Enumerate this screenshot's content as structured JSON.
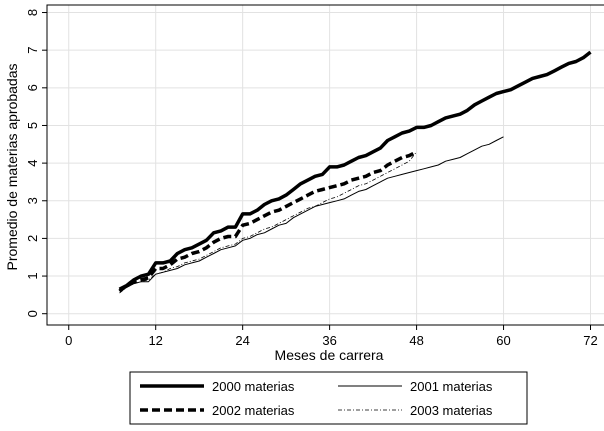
{
  "chart_data": {
    "type": "line",
    "title": "",
    "xlabel": "Meses de carrera",
    "ylabel": "Promedio de materias aprobadas",
    "xlim": [
      0,
      72
    ],
    "ylim": [
      0,
      8
    ],
    "x_ticks": [
      0,
      12,
      24,
      36,
      48,
      60,
      72
    ],
    "y_ticks": [
      0,
      1,
      2,
      3,
      4,
      5,
      6,
      7,
      8
    ],
    "grid": true,
    "legend_position": "bottom",
    "series": [
      {
        "name": "2000 materias",
        "style": "thick-solid",
        "x": [
          7,
          8,
          9,
          10,
          11,
          12,
          13,
          14,
          15,
          16,
          17,
          18,
          19,
          20,
          21,
          22,
          23,
          24,
          25,
          26,
          27,
          28,
          29,
          30,
          31,
          32,
          33,
          34,
          35,
          36,
          37,
          38,
          39,
          40,
          41,
          42,
          43,
          44,
          45,
          46,
          47,
          48,
          49,
          50,
          51,
          52,
          53,
          54,
          55,
          56,
          57,
          58,
          59,
          60,
          61,
          62,
          63,
          64,
          65,
          66,
          67,
          68,
          69,
          70,
          71,
          72
        ],
        "values": [
          0.65,
          0.75,
          0.9,
          1.0,
          1.05,
          1.35,
          1.35,
          1.4,
          1.6,
          1.7,
          1.75,
          1.85,
          1.95,
          2.15,
          2.2,
          2.3,
          2.3,
          2.65,
          2.65,
          2.75,
          2.9,
          3.0,
          3.05,
          3.15,
          3.3,
          3.45,
          3.55,
          3.65,
          3.7,
          3.9,
          3.9,
          3.95,
          4.05,
          4.15,
          4.2,
          4.3,
          4.4,
          4.6,
          4.7,
          4.8,
          4.85,
          4.95,
          4.95,
          5.0,
          5.1,
          5.2,
          5.25,
          5.3,
          5.4,
          5.55,
          5.65,
          5.75,
          5.85,
          5.9,
          5.95,
          6.05,
          6.15,
          6.25,
          6.3,
          6.35,
          6.45,
          6.55,
          6.65,
          6.7,
          6.8,
          6.95
        ]
      },
      {
        "name": "2001 materias",
        "style": "thin-solid",
        "x": [
          7,
          8,
          9,
          10,
          11,
          12,
          13,
          14,
          15,
          16,
          17,
          18,
          19,
          20,
          21,
          22,
          23,
          24,
          25,
          26,
          27,
          28,
          29,
          30,
          31,
          32,
          33,
          34,
          35,
          36,
          37,
          38,
          39,
          40,
          41,
          42,
          43,
          44,
          45,
          46,
          47,
          48,
          49,
          50,
          51,
          52,
          53,
          54,
          55,
          56,
          57,
          58,
          59,
          60
        ],
        "values": [
          0.6,
          0.7,
          0.8,
          0.85,
          0.85,
          1.05,
          1.1,
          1.15,
          1.2,
          1.3,
          1.35,
          1.4,
          1.5,
          1.6,
          1.7,
          1.75,
          1.8,
          1.95,
          2.0,
          2.1,
          2.15,
          2.25,
          2.35,
          2.4,
          2.55,
          2.65,
          2.75,
          2.85,
          2.9,
          2.95,
          3.0,
          3.05,
          3.15,
          3.25,
          3.3,
          3.4,
          3.5,
          3.6,
          3.65,
          3.7,
          3.75,
          3.8,
          3.85,
          3.9,
          3.95,
          4.05,
          4.1,
          4.15,
          4.25,
          4.35,
          4.45,
          4.5,
          4.6,
          4.7
        ]
      },
      {
        "name": "2002 materias",
        "style": "thick-dashed",
        "x": [
          7,
          8,
          9,
          10,
          11,
          12,
          13,
          14,
          15,
          16,
          17,
          18,
          19,
          20,
          21,
          22,
          23,
          24,
          25,
          26,
          27,
          28,
          29,
          30,
          31,
          32,
          33,
          34,
          35,
          36,
          37,
          38,
          39,
          40,
          41,
          42,
          43,
          44,
          45,
          46,
          47,
          48
        ],
        "values": [
          0.6,
          0.75,
          0.85,
          0.9,
          0.95,
          1.2,
          1.2,
          1.3,
          1.45,
          1.5,
          1.6,
          1.65,
          1.75,
          1.9,
          2.0,
          2.05,
          2.05,
          2.35,
          2.4,
          2.5,
          2.6,
          2.7,
          2.75,
          2.85,
          2.95,
          3.05,
          3.15,
          3.25,
          3.3,
          3.35,
          3.4,
          3.45,
          3.55,
          3.6,
          3.65,
          3.75,
          3.8,
          3.95,
          4.05,
          4.15,
          4.2,
          4.3
        ]
      },
      {
        "name": "2003 materias",
        "style": "thin-dashdot",
        "x": [
          7,
          8,
          9,
          10,
          11,
          12,
          13,
          14,
          15,
          16,
          17,
          18,
          19,
          20,
          21,
          22,
          23,
          24,
          25,
          26,
          27,
          28,
          29,
          30,
          31,
          32,
          33,
          34,
          35,
          36,
          37,
          38,
          39,
          40,
          41,
          42,
          43,
          44,
          45,
          46,
          47,
          48
        ],
        "values": [
          0.55,
          0.7,
          0.8,
          0.85,
          0.9,
          1.05,
          1.1,
          1.2,
          1.25,
          1.35,
          1.4,
          1.45,
          1.55,
          1.65,
          1.75,
          1.8,
          1.85,
          2.0,
          2.05,
          2.15,
          2.25,
          2.3,
          2.4,
          2.5,
          2.6,
          2.7,
          2.8,
          2.85,
          2.95,
          3.05,
          3.1,
          3.2,
          3.3,
          3.4,
          3.45,
          3.55,
          3.65,
          3.75,
          3.85,
          3.95,
          4.05,
          4.3
        ]
      }
    ]
  }
}
